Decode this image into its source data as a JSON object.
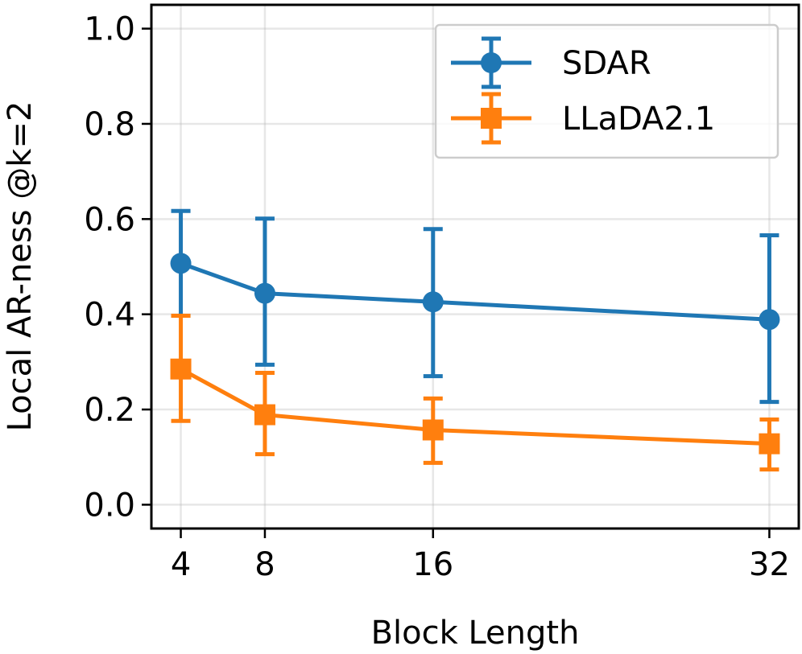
{
  "chart_data": {
    "type": "line",
    "xlabel": "Block Length",
    "ylabel": "Local AR-ness @k=2",
    "x": [
      4,
      8,
      16,
      32
    ],
    "xticks": [
      "4",
      "8",
      "16",
      "32"
    ],
    "yticks": [
      "0.0",
      "0.2",
      "0.4",
      "0.6",
      "0.8",
      "1.0"
    ],
    "xlim": [
      2.6,
      33.4
    ],
    "ylim": [
      -0.05,
      1.05
    ],
    "grid": true,
    "legend_position": "top-right",
    "series": [
      {
        "name": "SDAR",
        "color": "#1f77b4",
        "marker": "circle",
        "values": [
          0.507,
          0.444,
          0.426,
          0.389
        ],
        "err_low": [
          0.397,
          0.294,
          0.27,
          0.216
        ],
        "err_high": [
          0.617,
          0.601,
          0.579,
          0.566
        ]
      },
      {
        "name": "LLaDA2.1",
        "color": "#ff7f0e",
        "marker": "square",
        "values": [
          0.285,
          0.189,
          0.157,
          0.128
        ],
        "err_low": [
          0.176,
          0.106,
          0.088,
          0.074
        ],
        "err_high": [
          0.397,
          0.277,
          0.223,
          0.179
        ]
      }
    ]
  }
}
